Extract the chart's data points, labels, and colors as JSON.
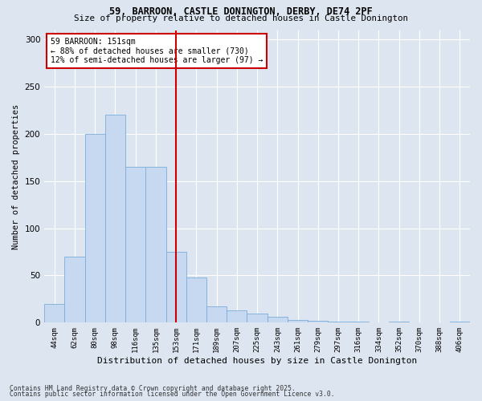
{
  "title1": "59, BARROON, CASTLE DONINGTON, DERBY, DE74 2PF",
  "title2": "Size of property relative to detached houses in Castle Donington",
  "xlabel": "Distribution of detached houses by size in Castle Donington",
  "ylabel": "Number of detached properties",
  "bins": [
    "44sqm",
    "62sqm",
    "80sqm",
    "98sqm",
    "116sqm",
    "135sqm",
    "153sqm",
    "171sqm",
    "189sqm",
    "207sqm",
    "225sqm",
    "243sqm",
    "261sqm",
    "279sqm",
    "297sqm",
    "316sqm",
    "334sqm",
    "352sqm",
    "370sqm",
    "388sqm",
    "406sqm"
  ],
  "values": [
    20,
    70,
    200,
    220,
    165,
    165,
    75,
    48,
    17,
    13,
    10,
    6,
    3,
    2,
    1,
    1,
    0,
    1,
    0,
    0,
    1
  ],
  "bar_color": "#c6d9f1",
  "bar_edge_color": "#7aaddb",
  "vline_color": "#cc0000",
  "annotation_text": "59 BARROON: 151sqm\n← 88% of detached houses are smaller (730)\n12% of semi-detached houses are larger (97) →",
  "annotation_box_color": "#ffffff",
  "annotation_box_edge": "#cc0000",
  "ylim": [
    0,
    310
  ],
  "yticks": [
    0,
    50,
    100,
    150,
    200,
    250,
    300
  ],
  "footer1": "Contains HM Land Registry data © Crown copyright and database right 2025.",
  "footer2": "Contains public sector information licensed under the Open Government Licence v3.0.",
  "background_color": "#dde5f0",
  "plot_background": "#dde5f0"
}
